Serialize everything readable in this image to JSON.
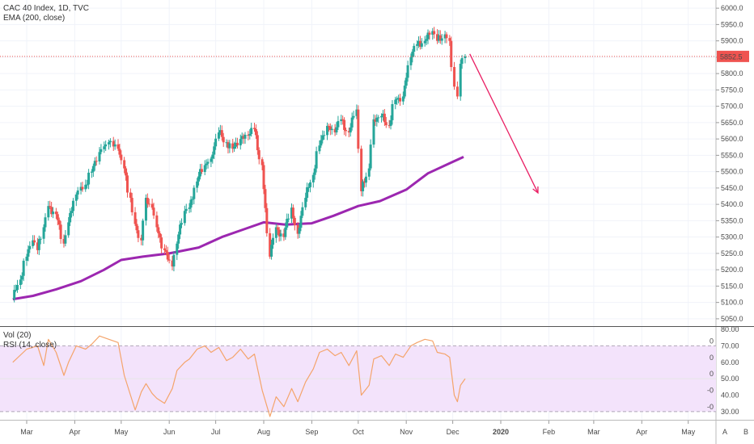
{
  "legend": {
    "main_title": "CAC 40 Index, 1D, TVC",
    "ema_label": "EMA (200, close)",
    "vol_label": "Vol (20)",
    "rsi_label": "RSI (14, close)"
  },
  "price_axis": {
    "ticks": [
      "6000.0",
      "5950.0",
      "5900.0",
      "5850.0",
      "5800.0",
      "5750.0",
      "5700.0",
      "5650.0",
      "5600.0",
      "5550.0",
      "5500.0",
      "5450.0",
      "5400.0",
      "5350.0",
      "5300.0",
      "5250.0",
      "5200.0",
      "5150.0",
      "5100.0",
      "5050.0"
    ],
    "last_price_label": "5852.5"
  },
  "rsi_axis": {
    "ticks": [
      "80.00",
      "70.00",
      "60.00",
      "50.00",
      "40.00",
      "30.00"
    ],
    "vol_ticks": [
      "0",
      "0",
      "0",
      "-0",
      "-0"
    ]
  },
  "time_axis": {
    "labels": [
      "Mar",
      "Apr",
      "May",
      "Jun",
      "Jul",
      "Aug",
      "Sep",
      "Oct",
      "Nov",
      "Dec",
      "2020",
      "Feb",
      "Mar",
      "Apr",
      "May"
    ],
    "corner_buttons": [
      "A",
      "B"
    ]
  },
  "colors": {
    "up": "#26a69a",
    "down": "#ef5350",
    "ema": "#9c27b0",
    "rsi": "#f4a46b",
    "rsi_band": "#f3e3fb",
    "arrow": "#e91e63",
    "last_price": "#ef5350"
  },
  "chart_data": [
    {
      "type": "candlestick",
      "title": "CAC 40 Index, 1D, TVC",
      "ylim": [
        5030,
        6025
      ],
      "last_price": 5852.5,
      "price_line_style": "dotted",
      "grid": true,
      "ema_200_points": [
        {
          "date": "2019-02-20",
          "value": 5110
        },
        {
          "date": "2019-03-05",
          "value": 5120
        },
        {
          "date": "2019-03-20",
          "value": 5140
        },
        {
          "date": "2019-04-05",
          "value": 5165
        },
        {
          "date": "2019-04-20",
          "value": 5200
        },
        {
          "date": "2019-05-01",
          "value": 5230
        },
        {
          "date": "2019-05-15",
          "value": 5240
        },
        {
          "date": "2019-06-01",
          "value": 5250
        },
        {
          "date": "2019-06-20",
          "value": 5268
        },
        {
          "date": "2019-07-05",
          "value": 5300
        },
        {
          "date": "2019-07-20",
          "value": 5325
        },
        {
          "date": "2019-08-01",
          "value": 5345
        },
        {
          "date": "2019-08-15",
          "value": 5338
        },
        {
          "date": "2019-09-01",
          "value": 5342
        },
        {
          "date": "2019-09-15",
          "value": 5365
        },
        {
          "date": "2019-10-01",
          "value": 5395
        },
        {
          "date": "2019-10-15",
          "value": 5410
        },
        {
          "date": "2019-11-01",
          "value": 5445
        },
        {
          "date": "2019-11-15",
          "value": 5495
        },
        {
          "date": "2019-12-01",
          "value": 5530
        },
        {
          "date": "2019-12-08",
          "value": 5545
        }
      ],
      "daily_closes": [
        [
          "2019-02-20",
          5110
        ],
        [
          "2019-02-25",
          5170
        ],
        [
          "2019-03-01",
          5240
        ],
        [
          "2019-03-05",
          5290
        ],
        [
          "2019-03-08",
          5260
        ],
        [
          "2019-03-12",
          5330
        ],
        [
          "2019-03-15",
          5395
        ],
        [
          "2019-03-20",
          5370
        ],
        [
          "2019-03-25",
          5280
        ],
        [
          "2019-03-28",
          5345
        ],
        [
          "2019-04-02",
          5430
        ],
        [
          "2019-04-08",
          5460
        ],
        [
          "2019-04-12",
          5500
        ],
        [
          "2019-04-17",
          5560
        ],
        [
          "2019-04-23",
          5590
        ],
        [
          "2019-04-29",
          5570
        ],
        [
          "2019-05-03",
          5510
        ],
        [
          "2019-05-07",
          5420
        ],
        [
          "2019-05-10",
          5340
        ],
        [
          "2019-05-14",
          5290
        ],
        [
          "2019-05-17",
          5420
        ],
        [
          "2019-05-21",
          5390
        ],
        [
          "2019-05-24",
          5330
        ],
        [
          "2019-05-29",
          5260
        ],
        [
          "2019-06-03",
          5210
        ],
        [
          "2019-06-06",
          5280
        ],
        [
          "2019-06-11",
          5380
        ],
        [
          "2019-06-14",
          5390
        ],
        [
          "2019-06-19",
          5470
        ],
        [
          "2019-06-24",
          5520
        ],
        [
          "2019-06-28",
          5540
        ],
        [
          "2019-07-03",
          5620
        ],
        [
          "2019-07-08",
          5590
        ],
        [
          "2019-07-12",
          5570
        ],
        [
          "2019-07-17",
          5600
        ],
        [
          "2019-07-22",
          5610
        ],
        [
          "2019-07-26",
          5630
        ],
        [
          "2019-07-31",
          5520
        ],
        [
          "2019-08-05",
          5240
        ],
        [
          "2019-08-09",
          5330
        ],
        [
          "2019-08-14",
          5300
        ],
        [
          "2019-08-19",
          5390
        ],
        [
          "2019-08-23",
          5310
        ],
        [
          "2019-08-28",
          5420
        ],
        [
          "2019-09-02",
          5490
        ],
        [
          "2019-09-06",
          5580
        ],
        [
          "2019-09-11",
          5640
        ],
        [
          "2019-09-16",
          5620
        ],
        [
          "2019-09-20",
          5660
        ],
        [
          "2019-09-25",
          5620
        ],
        [
          "2019-09-30",
          5690
        ],
        [
          "2019-10-03",
          5440
        ],
        [
          "2019-10-08",
          5510
        ],
        [
          "2019-10-11",
          5660
        ],
        [
          "2019-10-16",
          5670
        ],
        [
          "2019-10-21",
          5640
        ],
        [
          "2019-10-25",
          5720
        ],
        [
          "2019-10-30",
          5730
        ],
        [
          "2019-11-04",
          5850
        ],
        [
          "2019-11-08",
          5890
        ],
        [
          "2019-11-13",
          5900
        ],
        [
          "2019-11-18",
          5930
        ],
        [
          "2019-11-21",
          5900
        ],
        [
          "2019-11-26",
          5920
        ],
        [
          "2019-11-29",
          5900
        ],
        [
          "2019-12-02",
          5760
        ],
        [
          "2019-12-04",
          5730
        ],
        [
          "2019-12-06",
          5830
        ],
        [
          "2019-12-09",
          5852.5
        ]
      ],
      "annotation": {
        "type": "arrow",
        "from": {
          "date": "2019-12-12",
          "value": 5860
        },
        "to": {
          "date": "2020-01-25",
          "value": 5435
        }
      }
    },
    {
      "type": "line",
      "title": "RSI (14, close)",
      "ylim": [
        25,
        81
      ],
      "band": [
        30,
        70
      ],
      "points": [
        [
          "2019-02-20",
          60
        ],
        [
          "2019-03-01",
          68
        ],
        [
          "2019-03-08",
          70
        ],
        [
          "2019-03-12",
          58
        ],
        [
          "2019-03-15",
          74
        ],
        [
          "2019-03-20",
          66
        ],
        [
          "2019-03-25",
          52
        ],
        [
          "2019-03-28",
          60
        ],
        [
          "2019-04-02",
          70
        ],
        [
          "2019-04-08",
          68
        ],
        [
          "2019-04-12",
          71
        ],
        [
          "2019-04-17",
          76
        ],
        [
          "2019-04-23",
          74
        ],
        [
          "2019-04-29",
          72
        ],
        [
          "2019-05-03",
          52
        ],
        [
          "2019-05-07",
          40
        ],
        [
          "2019-05-10",
          31
        ],
        [
          "2019-05-14",
          42
        ],
        [
          "2019-05-17",
          47
        ],
        [
          "2019-05-21",
          41
        ],
        [
          "2019-05-24",
          38
        ],
        [
          "2019-05-29",
          35
        ],
        [
          "2019-06-03",
          44
        ],
        [
          "2019-06-06",
          55
        ],
        [
          "2019-06-11",
          60
        ],
        [
          "2019-06-14",
          62
        ],
        [
          "2019-06-19",
          68
        ],
        [
          "2019-06-24",
          70
        ],
        [
          "2019-06-28",
          66
        ],
        [
          "2019-07-03",
          69
        ],
        [
          "2019-07-08",
          61
        ],
        [
          "2019-07-12",
          63
        ],
        [
          "2019-07-17",
          68
        ],
        [
          "2019-07-22",
          62
        ],
        [
          "2019-07-26",
          65
        ],
        [
          "2019-07-31",
          43
        ],
        [
          "2019-08-05",
          27
        ],
        [
          "2019-08-09",
          39
        ],
        [
          "2019-08-14",
          33
        ],
        [
          "2019-08-19",
          44
        ],
        [
          "2019-08-23",
          36
        ],
        [
          "2019-08-28",
          48
        ],
        [
          "2019-09-02",
          56
        ],
        [
          "2019-09-06",
          66
        ],
        [
          "2019-09-11",
          68
        ],
        [
          "2019-09-16",
          64
        ],
        [
          "2019-09-20",
          66
        ],
        [
          "2019-09-25",
          58
        ],
        [
          "2019-09-30",
          67
        ],
        [
          "2019-10-03",
          40
        ],
        [
          "2019-10-08",
          46
        ],
        [
          "2019-10-11",
          62
        ],
        [
          "2019-10-16",
          64
        ],
        [
          "2019-10-21",
          58
        ],
        [
          "2019-10-25",
          65
        ],
        [
          "2019-10-30",
          63
        ],
        [
          "2019-11-04",
          70
        ],
        [
          "2019-11-08",
          72
        ],
        [
          "2019-11-13",
          74
        ],
        [
          "2019-11-18",
          73
        ],
        [
          "2019-11-21",
          66
        ],
        [
          "2019-11-26",
          65
        ],
        [
          "2019-11-29",
          63
        ],
        [
          "2019-12-02",
          40
        ],
        [
          "2019-12-04",
          36
        ],
        [
          "2019-12-06",
          46
        ],
        [
          "2019-12-09",
          50
        ]
      ]
    }
  ]
}
